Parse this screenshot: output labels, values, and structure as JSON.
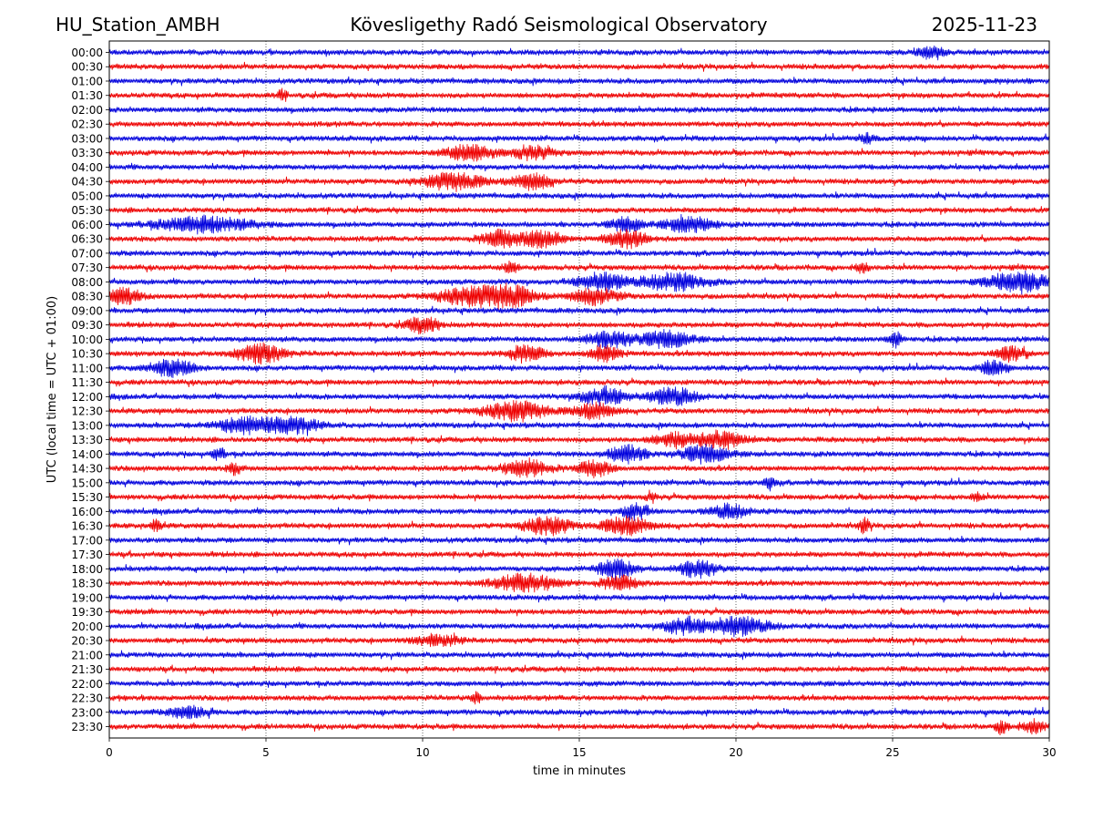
{
  "header": {
    "station": "HU_Station_AMBH",
    "observatory": "Kövesligethy Radó Seismological Observatory",
    "date": "2025-11-23"
  },
  "chart_data": {
    "type": "line",
    "title": "Kövesligethy Radó Seismological Observatory",
    "xlabel": "time in minutes",
    "ylabel": "UTC (local time = UTC + 01:00)",
    "xlim": [
      0,
      30
    ],
    "xticks": [
      0,
      5,
      10,
      15,
      20,
      25,
      30
    ],
    "grid": "vertical dotted at x ticks",
    "row_labels": [
      "00:00",
      "00:30",
      "01:00",
      "01:30",
      "02:00",
      "02:30",
      "03:00",
      "03:30",
      "04:00",
      "04:30",
      "05:00",
      "05:30",
      "06:00",
      "06:30",
      "07:00",
      "07:30",
      "08:00",
      "08:30",
      "09:00",
      "09:30",
      "10:00",
      "10:30",
      "11:00",
      "11:30",
      "12:00",
      "12:30",
      "13:00",
      "13:30",
      "14:00",
      "14:30",
      "15:00",
      "15:30",
      "16:00",
      "16:30",
      "17:00",
      "17:30",
      "18:00",
      "18:30",
      "19:00",
      "19:30",
      "20:00",
      "20:30",
      "21:00",
      "21:30",
      "22:00",
      "22:30",
      "23:00",
      "23:30"
    ],
    "colors": [
      "#0000dd",
      "#ee0000"
    ],
    "events": [
      {
        "row": 0,
        "t": 26.2,
        "amp": 0.7,
        "dur": 0.8
      },
      {
        "row": 3,
        "t": 5.5,
        "amp": 0.6,
        "dur": 0.3
      },
      {
        "row": 6,
        "t": 24.2,
        "amp": 0.6,
        "dur": 0.5
      },
      {
        "row": 7,
        "t": 11.5,
        "amp": 0.9,
        "dur": 1.5
      },
      {
        "row": 7,
        "t": 13.5,
        "amp": 0.8,
        "dur": 1.2
      },
      {
        "row": 9,
        "t": 11.0,
        "amp": 1.0,
        "dur": 1.8
      },
      {
        "row": 9,
        "t": 13.5,
        "amp": 0.9,
        "dur": 1.2
      },
      {
        "row": 12,
        "t": 3.0,
        "amp": 0.9,
        "dur": 3.0
      },
      {
        "row": 12,
        "t": 16.5,
        "amp": 0.8,
        "dur": 1.0
      },
      {
        "row": 12,
        "t": 18.5,
        "amp": 0.9,
        "dur": 1.5
      },
      {
        "row": 13,
        "t": 12.5,
        "amp": 1.0,
        "dur": 1.2
      },
      {
        "row": 13,
        "t": 13.8,
        "amp": 1.1,
        "dur": 1.2
      },
      {
        "row": 13,
        "t": 16.5,
        "amp": 1.0,
        "dur": 1.2
      },
      {
        "row": 15,
        "t": 12.8,
        "amp": 0.7,
        "dur": 0.4
      },
      {
        "row": 15,
        "t": 24.0,
        "amp": 0.6,
        "dur": 0.4
      },
      {
        "row": 16,
        "t": 15.7,
        "amp": 1.1,
        "dur": 1.5
      },
      {
        "row": 16,
        "t": 18.0,
        "amp": 1.0,
        "dur": 2.0
      },
      {
        "row": 16,
        "t": 29.0,
        "amp": 1.1,
        "dur": 2.0
      },
      {
        "row": 17,
        "t": 0.5,
        "amp": 0.9,
        "dur": 1.0
      },
      {
        "row": 17,
        "t": 11.5,
        "amp": 1.0,
        "dur": 2.0
      },
      {
        "row": 17,
        "t": 12.8,
        "amp": 1.2,
        "dur": 1.5
      },
      {
        "row": 17,
        "t": 15.5,
        "amp": 0.9,
        "dur": 1.5
      },
      {
        "row": 19,
        "t": 10.0,
        "amp": 0.9,
        "dur": 1.0
      },
      {
        "row": 20,
        "t": 16.0,
        "amp": 0.9,
        "dur": 1.5
      },
      {
        "row": 20,
        "t": 17.8,
        "amp": 1.0,
        "dur": 1.5
      },
      {
        "row": 20,
        "t": 25.1,
        "amp": 0.8,
        "dur": 0.4
      },
      {
        "row": 21,
        "t": 4.8,
        "amp": 1.1,
        "dur": 1.5
      },
      {
        "row": 21,
        "t": 13.3,
        "amp": 0.9,
        "dur": 1.2
      },
      {
        "row": 21,
        "t": 15.8,
        "amp": 0.9,
        "dur": 1.0
      },
      {
        "row": 21,
        "t": 28.8,
        "amp": 0.8,
        "dur": 1.0
      },
      {
        "row": 22,
        "t": 2.0,
        "amp": 0.9,
        "dur": 1.5
      },
      {
        "row": 22,
        "t": 28.2,
        "amp": 0.8,
        "dur": 0.8
      },
      {
        "row": 24,
        "t": 15.8,
        "amp": 1.0,
        "dur": 1.5
      },
      {
        "row": 24,
        "t": 18.0,
        "amp": 1.0,
        "dur": 1.5
      },
      {
        "row": 25,
        "t": 13.0,
        "amp": 1.1,
        "dur": 2.0
      },
      {
        "row": 25,
        "t": 15.5,
        "amp": 0.9,
        "dur": 1.2
      },
      {
        "row": 26,
        "t": 4.5,
        "amp": 1.0,
        "dur": 2.0
      },
      {
        "row": 26,
        "t": 6.0,
        "amp": 0.8,
        "dur": 1.5
      },
      {
        "row": 27,
        "t": 19.5,
        "amp": 1.0,
        "dur": 1.5
      },
      {
        "row": 27,
        "t": 18.0,
        "amp": 0.8,
        "dur": 1.2
      },
      {
        "row": 28,
        "t": 16.5,
        "amp": 1.0,
        "dur": 1.2
      },
      {
        "row": 28,
        "t": 19.0,
        "amp": 1.0,
        "dur": 1.5
      },
      {
        "row": 28,
        "t": 3.5,
        "amp": 0.7,
        "dur": 0.4
      },
      {
        "row": 29,
        "t": 13.3,
        "amp": 1.0,
        "dur": 1.5
      },
      {
        "row": 29,
        "t": 15.5,
        "amp": 1.0,
        "dur": 1.0
      },
      {
        "row": 29,
        "t": 4.0,
        "amp": 0.7,
        "dur": 0.4
      },
      {
        "row": 30,
        "t": 21.1,
        "amp": 0.8,
        "dur": 0.3
      },
      {
        "row": 31,
        "t": 27.7,
        "amp": 0.6,
        "dur": 0.3
      },
      {
        "row": 31,
        "t": 17.3,
        "amp": 0.6,
        "dur": 0.3
      },
      {
        "row": 32,
        "t": 16.8,
        "amp": 1.0,
        "dur": 0.8
      },
      {
        "row": 32,
        "t": 19.8,
        "amp": 0.8,
        "dur": 1.2
      },
      {
        "row": 33,
        "t": 1.5,
        "amp": 0.8,
        "dur": 0.3
      },
      {
        "row": 33,
        "t": 14.0,
        "amp": 1.0,
        "dur": 1.5
      },
      {
        "row": 33,
        "t": 16.5,
        "amp": 1.0,
        "dur": 1.5
      },
      {
        "row": 33,
        "t": 24.1,
        "amp": 0.9,
        "dur": 0.3
      },
      {
        "row": 36,
        "t": 16.2,
        "amp": 1.1,
        "dur": 1.2
      },
      {
        "row": 36,
        "t": 18.8,
        "amp": 1.0,
        "dur": 1.2
      },
      {
        "row": 37,
        "t": 13.3,
        "amp": 1.0,
        "dur": 2.0
      },
      {
        "row": 37,
        "t": 16.3,
        "amp": 0.8,
        "dur": 1.2
      },
      {
        "row": 40,
        "t": 18.3,
        "amp": 0.9,
        "dur": 1.2
      },
      {
        "row": 40,
        "t": 20.0,
        "amp": 1.1,
        "dur": 2.0
      },
      {
        "row": 41,
        "t": 10.5,
        "amp": 0.6,
        "dur": 1.5
      },
      {
        "row": 45,
        "t": 11.7,
        "amp": 0.6,
        "dur": 0.3
      },
      {
        "row": 46,
        "t": 2.5,
        "amp": 0.6,
        "dur": 1.5
      },
      {
        "row": 47,
        "t": 28.5,
        "amp": 0.7,
        "dur": 0.4
      },
      {
        "row": 47,
        "t": 29.5,
        "amp": 0.7,
        "dur": 0.8
      }
    ]
  }
}
